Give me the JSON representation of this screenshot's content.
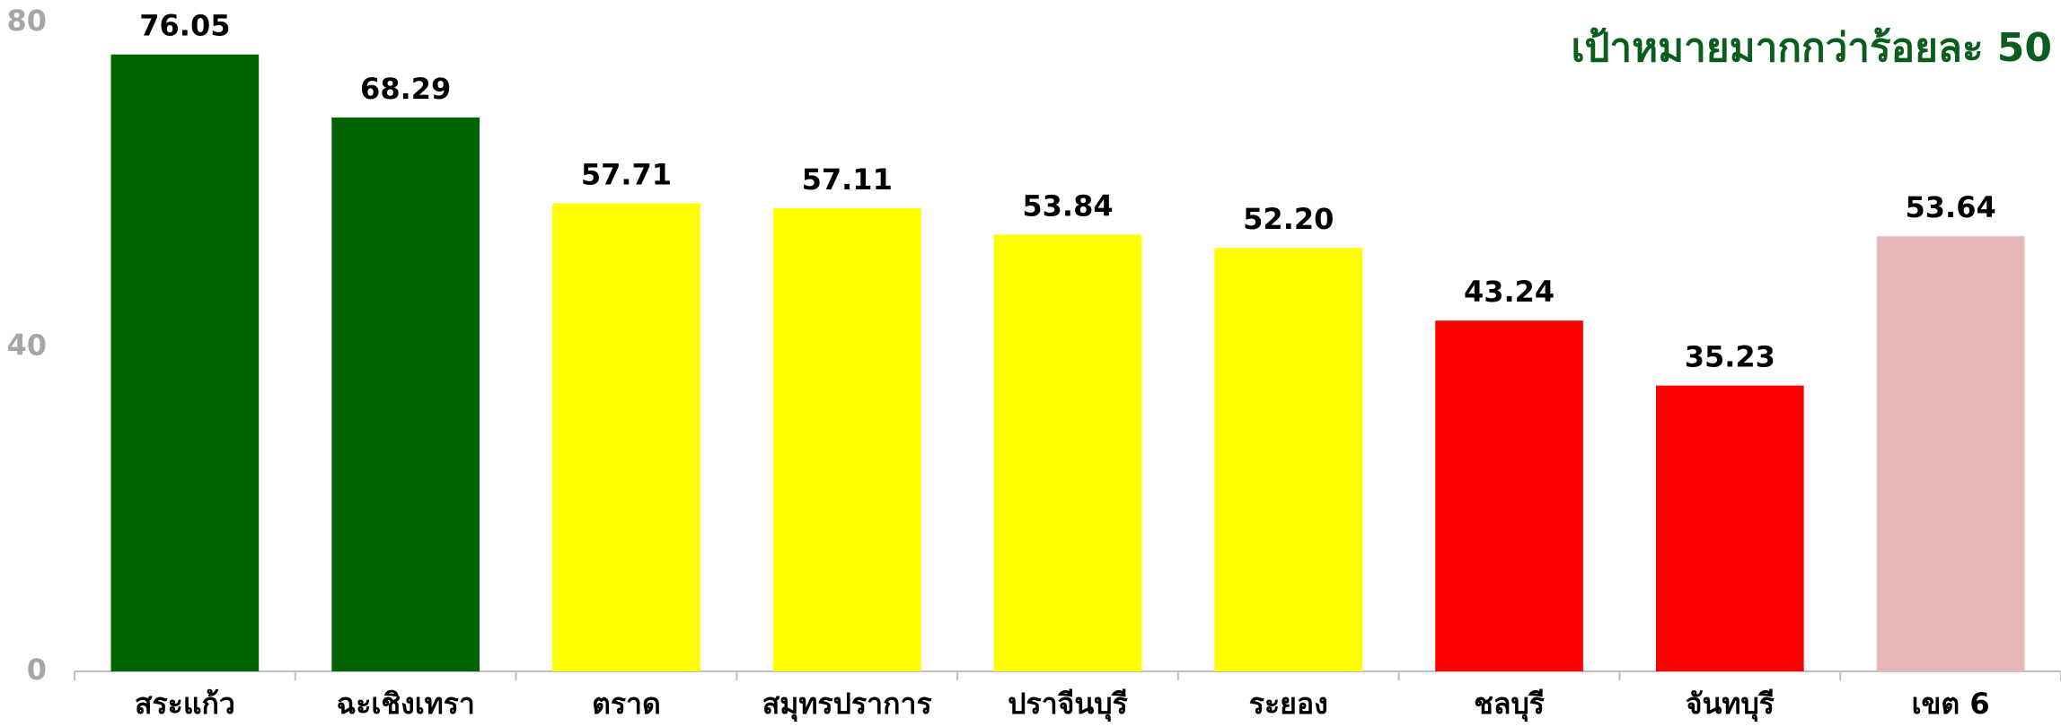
{
  "chart_data": {
    "type": "bar",
    "title": "เป้าหมายมากกว่าร้อยละ 50",
    "categories": [
      "สระแก้ว",
      "ฉะเชิงเทรา",
      "ตราด",
      "สมุทรปราการ",
      "ปราจีนบุรี",
      "ระยอง",
      "ชลบุรี",
      "จันทบุรี",
      "เขต 6"
    ],
    "values": [
      76.05,
      68.29,
      57.71,
      57.11,
      53.84,
      52.2,
      43.24,
      35.23,
      53.64
    ],
    "value_labels": [
      "76.05",
      "68.29",
      "57.71",
      "57.11",
      "53.84",
      "52.20",
      "43.24",
      "35.23",
      "53.64"
    ],
    "colors": [
      "#006400",
      "#006400",
      "#ffff00",
      "#ffff00",
      "#ffff00",
      "#ffff00",
      "#ff0000",
      "#ff0000",
      "#e6b8b7"
    ],
    "ylim": [
      0,
      80
    ],
    "yticks": [
      0,
      40,
      80
    ],
    "grid": false
  }
}
